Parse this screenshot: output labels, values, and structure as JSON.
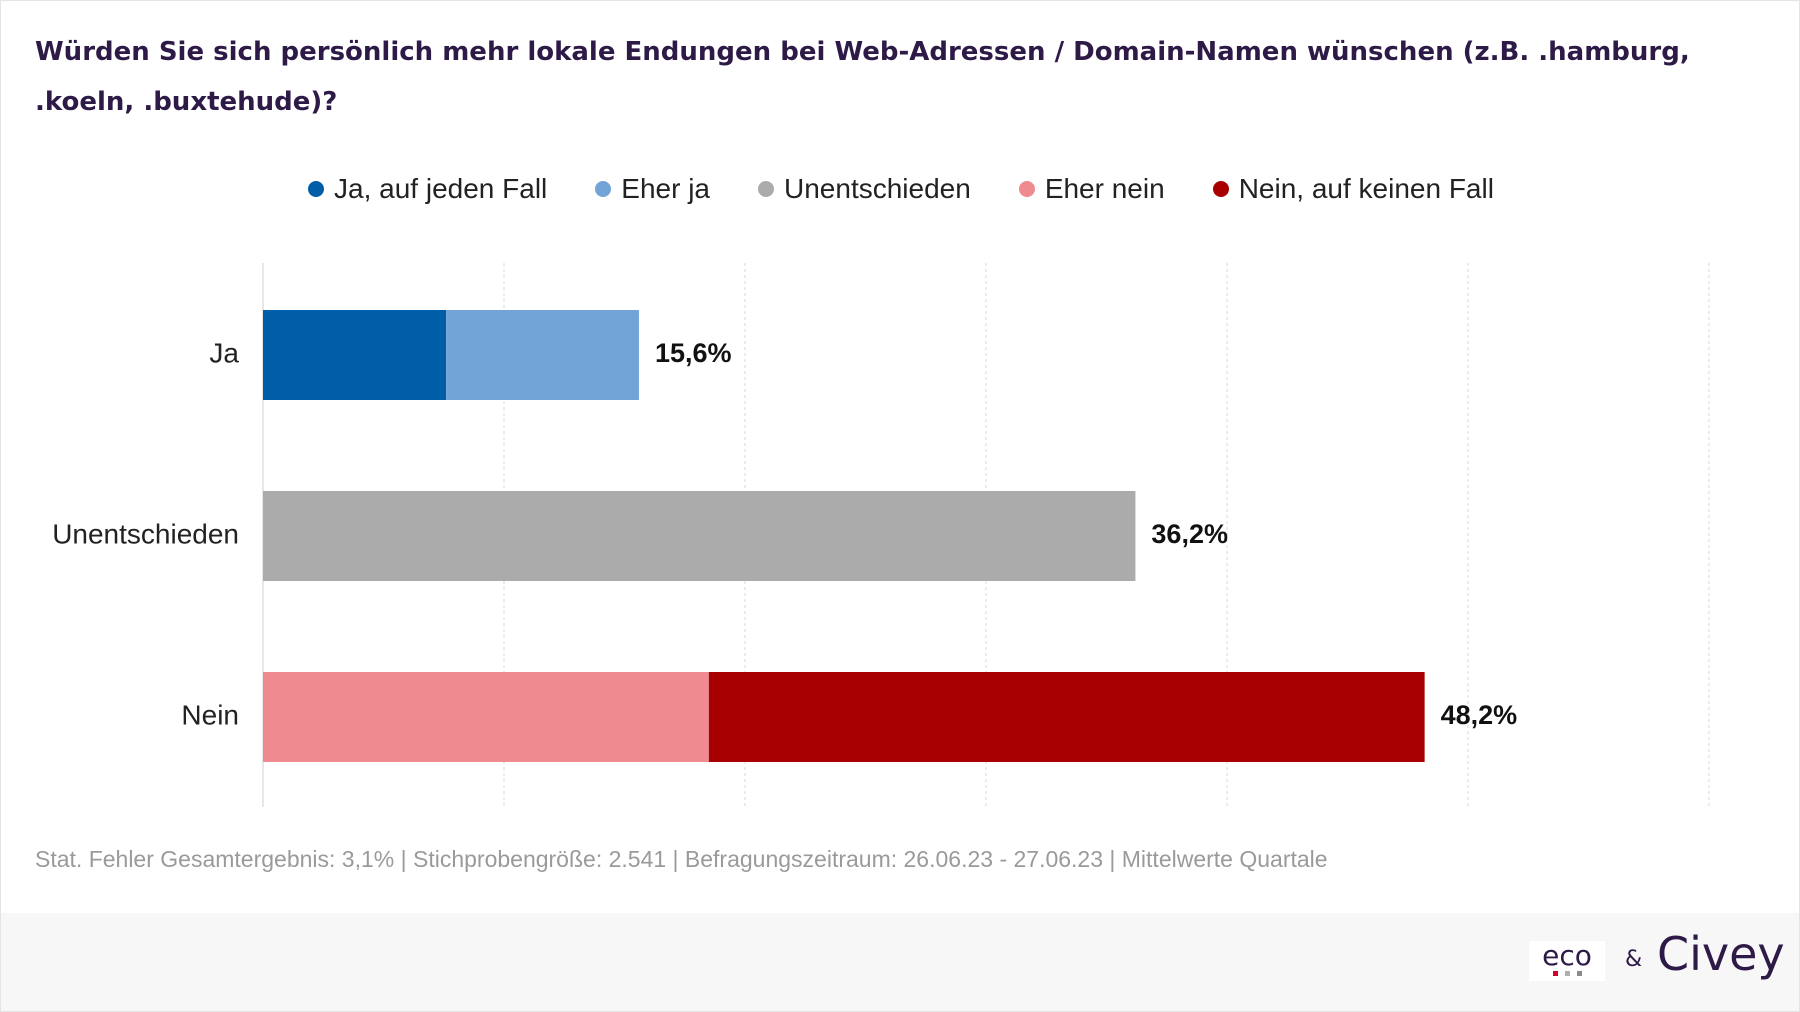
{
  "title": "Würden Sie sich persönlich mehr lokale Endungen bei Web-Adressen / Domain-Namen wünschen (z.B. .hamburg, .koeln, .buxtehude)?",
  "legend": [
    {
      "label": "Ja, auf jeden Fall",
      "color": "#005ea8"
    },
    {
      "label": "Eher ja",
      "color": "#72a4d8"
    },
    {
      "label": "Unentschieden",
      "color": "#ababab"
    },
    {
      "label": "Eher nein",
      "color": "#f08a91"
    },
    {
      "label": "Nein, auf keinen Fall",
      "color": "#a80000"
    }
  ],
  "chart_data": {
    "type": "bar",
    "orientation": "horizontal",
    "stacked": true,
    "categories": [
      "Ja",
      "Unentschieden",
      "Nein"
    ],
    "series": [
      {
        "name": "Ja, auf jeden Fall",
        "color": "#005ea8",
        "values": [
          7.6,
          0,
          0
        ]
      },
      {
        "name": "Eher ja",
        "color": "#72a4d8",
        "values": [
          8.0,
          0,
          0
        ]
      },
      {
        "name": "Unentschieden",
        "color": "#ababab",
        "values": [
          0,
          36.2,
          0
        ]
      },
      {
        "name": "Eher nein",
        "color": "#f08a91",
        "values": [
          0,
          0,
          18.5
        ]
      },
      {
        "name": "Nein, auf keinen Fall",
        "color": "#a80000",
        "values": [
          0,
          0,
          29.7
        ]
      }
    ],
    "totals": [
      15.6,
      36.2,
      48.2
    ],
    "total_labels": [
      "15,6%",
      "36,2%",
      "48,2%"
    ],
    "xlim": [
      0,
      60
    ],
    "grid": true,
    "legend_position": "top"
  },
  "footnote": "Stat. Fehler Gesamtergebnis: 3,1% | Stichprobengröße: 2.541 | Befragungszeitraum: 26.06.23 - 27.06.23 | Mittelwerte Quartale",
  "brand": {
    "eco": "eco",
    "eco_dot_colors": [
      "#d6002a",
      "#b0b0b0",
      "#8a8a8a"
    ],
    "ampersand": "&",
    "civey": "Civey"
  }
}
